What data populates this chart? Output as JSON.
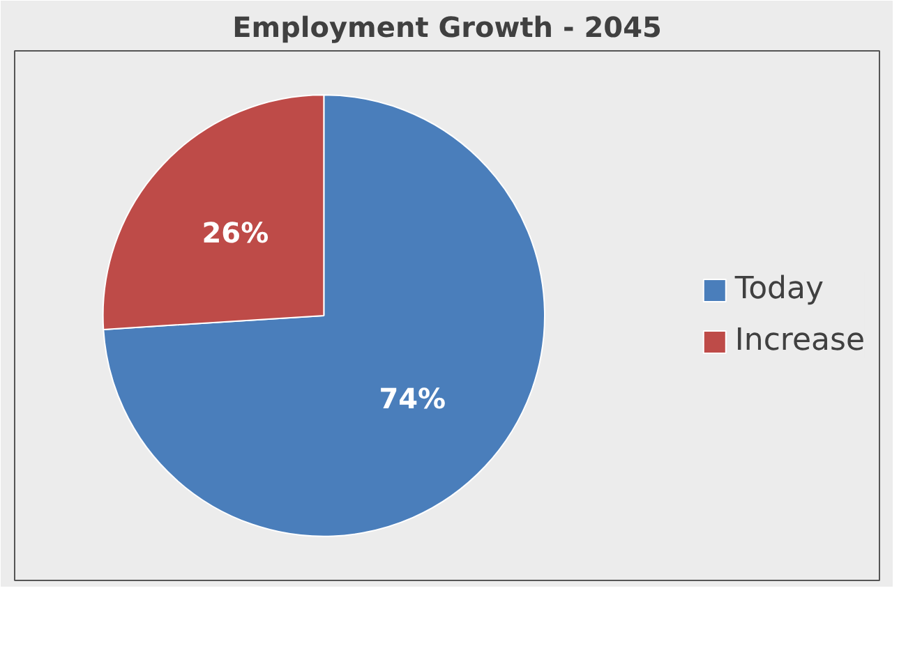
{
  "chart_data": {
    "type": "pie",
    "title": "Employment Growth - 2045",
    "categories": [
      "Today",
      "Increase"
    ],
    "values": [
      74,
      26
    ],
    "colors": [
      "#4a7ebb",
      "#be4b48"
    ],
    "value_labels": [
      "74%",
      "26%"
    ],
    "legend": "right"
  }
}
